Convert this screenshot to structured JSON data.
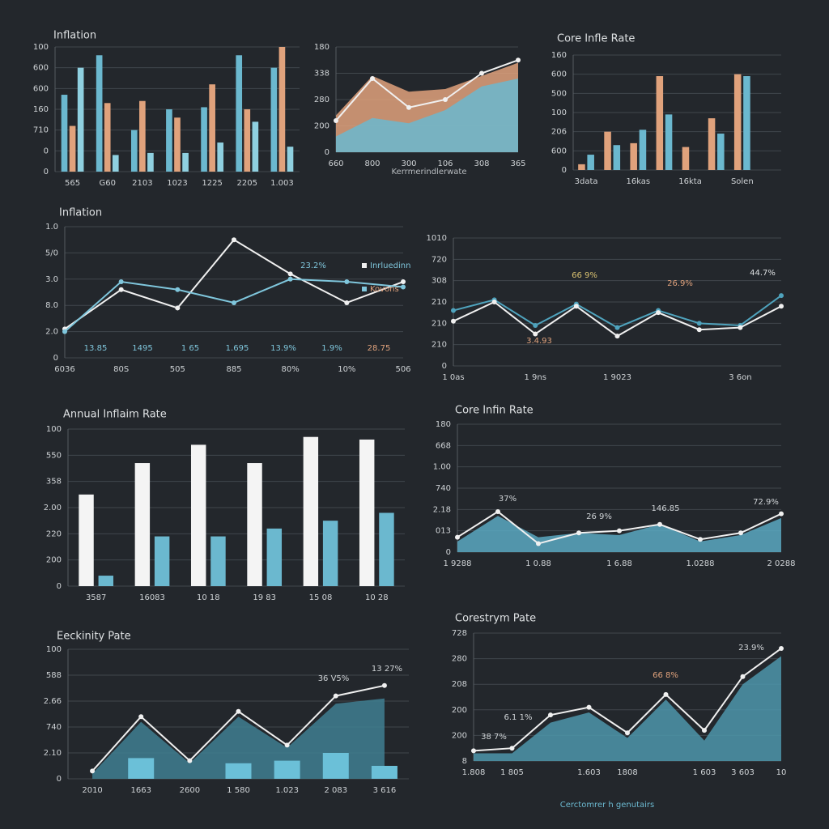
{
  "chart_data": [
    {
      "type": "bar",
      "title": "Inflation",
      "grid": true,
      "categories": [
        "565",
        "G60",
        "2103",
        "1023",
        "1225",
        "2205",
        "1.003"
      ],
      "series": [
        {
          "color": "#6bb8cf",
          "values": [
            3.7,
            5.6,
            2.0,
            3.0,
            3.1,
            5.6,
            5.0
          ]
        },
        {
          "color": "#e0a27c",
          "values": [
            2.2,
            3.3,
            3.4,
            2.6,
            4.2,
            3.0,
            6.0
          ]
        },
        {
          "color": "#8fd0e0",
          "values": [
            5.0,
            0.8,
            0.9,
            0.9,
            1.4,
            2.4,
            1.2
          ]
        }
      ],
      "ylim": [
        0,
        6
      ],
      "yticks": [
        0,
        {
          "value": 1,
          "label": "0"
        },
        {
          "value": 2,
          "label": "710"
        },
        {
          "value": 3,
          "label": "160"
        },
        {
          "value": 4,
          "label": "600"
        },
        {
          "value": 5,
          "label": "600"
        },
        {
          "value": 6,
          "label": "100"
        }
      ]
    },
    {
      "type": "area",
      "xlabel": "Kerrmerindlerwate",
      "grid": true,
      "categories": [
        "660",
        "800",
        "300",
        "106",
        "308",
        "365"
      ],
      "series": [
        {
          "type": "area",
          "color": "#e0a27c",
          "values": [
            1.4,
            2.9,
            2.3,
            2.4,
            2.9,
            3.4
          ]
        },
        {
          "type": "area",
          "color": "#6bb8cf",
          "values": [
            0.6,
            1.3,
            1.1,
            1.6,
            2.5,
            2.8
          ]
        },
        {
          "type": "line",
          "color": "#f0f0f0",
          "values": [
            1.2,
            2.8,
            1.7,
            2.0,
            3.0,
            3.5
          ]
        }
      ],
      "ylim": [
        0,
        4
      ],
      "yticks": [
        0,
        {
          "value": 1,
          "label": "200"
        },
        {
          "value": 2,
          "label": "280"
        },
        {
          "value": 3,
          "label": "338"
        },
        {
          "value": 4,
          "label": "180"
        }
      ]
    },
    {
      "type": "bar",
      "title": "Core Infle Rate",
      "grid": true,
      "categories": [
        "3data",
        null,
        "16kas",
        null,
        "16kta",
        null,
        "Solen",
        null
      ],
      "series": [
        {
          "color": "#e0a27c",
          "values": [
            0.3,
            2.0,
            1.4,
            4.9,
            1.2,
            2.7,
            5.0,
            0
          ]
        },
        {
          "color": "#6bb8cf",
          "values": [
            0.8,
            1.3,
            2.1,
            2.9,
            0,
            1.9,
            4.9,
            0
          ]
        }
      ],
      "ylim": [
        0,
        6
      ],
      "yticks": [
        0,
        {
          "value": 1,
          "label": "600"
        },
        {
          "value": 2,
          "label": "206"
        },
        {
          "value": 3,
          "label": "100"
        },
        {
          "value": 4,
          "label": "500"
        },
        {
          "value": 5,
          "label": "600"
        },
        {
          "value": 6,
          "label": "160"
        }
      ]
    },
    {
      "type": "line",
      "title": "Inflation",
      "grid": true,
      "categories": [
        "6036",
        "80S",
        "505",
        "885",
        "80%",
        "10%",
        "506"
      ],
      "series": [
        {
          "name": "Inrluedinn",
          "color": "#f0f0f0",
          "values": [
            1.1,
            2.6,
            1.9,
            4.5,
            3.2,
            2.1,
            2.9
          ]
        },
        {
          "name": "Kovons",
          "color": "#7fc6dc",
          "values": [
            1.0,
            2.9,
            2.6,
            2.1,
            3.0,
            2.9,
            2.7
          ]
        }
      ],
      "annotations": [
        {
          "text": "23.2%",
          "color": "#7fc6dc"
        },
        {
          "text": "13.85",
          "color": "#7fc6dc"
        },
        {
          "text": "1495",
          "color": "#7fc6dc"
        },
        {
          "text": "1 65",
          "color": "#7fc6dc"
        },
        {
          "text": "1.695",
          "color": "#7fc6dc"
        },
        {
          "text": "13.9%",
          "color": "#7fc6dc"
        },
        {
          "text": "1.9%",
          "color": "#7fc6dc"
        },
        {
          "text": "28.75",
          "color": "#e0a27c"
        }
      ],
      "ylim": [
        0,
        5
      ],
      "yticks": [
        0,
        {
          "value": 1,
          "label": "2.0"
        },
        {
          "value": 2,
          "label": "8.0"
        },
        {
          "value": 3,
          "label": "3.0"
        },
        {
          "value": 4,
          "label": "5/0"
        },
        {
          "value": 5,
          "label": "1.0"
        }
      ]
    },
    {
      "type": "line",
      "grid": true,
      "categories": [
        "1 0as",
        null,
        "1 9ns",
        null,
        "1 9023",
        null,
        null,
        "3 6on",
        null
      ],
      "series": [
        {
          "color": "#4fa3bd",
          "values": [
            2.6,
            3.1,
            1.9,
            2.9,
            1.8,
            2.6,
            2.0,
            1.9,
            3.3
          ]
        },
        {
          "color": "#f0f0f0",
          "values": [
            2.1,
            3.0,
            1.5,
            2.8,
            1.4,
            2.5,
            1.7,
            1.8,
            2.8
          ]
        }
      ],
      "annotations": [
        {
          "text": "66 9%",
          "color": "#d8c070"
        },
        {
          "text": "26.9%",
          "color": "#e0a27c"
        },
        {
          "text": "44.7%",
          "color": "#dde0e2"
        },
        {
          "text": "3.4.93",
          "color": "#e0a27c"
        }
      ],
      "ylim": [
        0,
        6
      ],
      "yticks": [
        0,
        {
          "value": 1,
          "label": "210"
        },
        {
          "value": 2,
          "label": "210"
        },
        {
          "value": 3,
          "label": "210"
        },
        {
          "value": 4,
          "label": "308"
        },
        {
          "value": 5,
          "label": "720"
        },
        {
          "value": 6,
          "label": "1010"
        }
      ]
    },
    {
      "type": "bar",
      "title": "Annual Inflaim Rate",
      "grid": true,
      "categories": [
        "3587",
        "16083",
        "10 18",
        "19 83",
        "15 08",
        "10 28"
      ],
      "series": [
        {
          "color": "#f4f4f4",
          "values": [
            3.5,
            4.7,
            5.4,
            4.7,
            5.7,
            5.6
          ]
        },
        {
          "color": "#6bb8cf",
          "values": [
            0.4,
            1.9,
            1.9,
            2.2,
            2.5,
            2.8
          ]
        }
      ],
      "ylim": [
        0,
        6
      ],
      "yticks": [
        0,
        {
          "value": 1,
          "label": "200"
        },
        {
          "value": 2,
          "label": "220"
        },
        {
          "value": 3,
          "label": "2.00"
        },
        {
          "value": 4,
          "label": "358"
        },
        {
          "value": 5,
          "label": "550"
        },
        {
          "value": 6,
          "label": "100"
        }
      ]
    },
    {
      "type": "area",
      "title": "Core Infin Rate",
      "grid": true,
      "categories": [
        "1 9288",
        null,
        "1 0.88",
        null,
        "1 6.88",
        null,
        "1.0288",
        null,
        "2 0288"
      ],
      "series": [
        {
          "type": "area",
          "color": "#5aa9c2",
          "values": [
            0.5,
            1.7,
            0.7,
            0.9,
            0.8,
            1.3,
            0.5,
            0.8,
            1.6
          ]
        },
        {
          "type": "line",
          "color": "#f0f0f0",
          "values": [
            0.7,
            1.9,
            0.4,
            0.9,
            1.0,
            1.3,
            0.6,
            0.9,
            1.8
          ]
        }
      ],
      "annotations": [
        {
          "text": "37%",
          "color": "#cfd3d6"
        },
        {
          "text": "26 9%",
          "color": "#cfd3d6"
        },
        {
          "text": "146.85",
          "color": "#cfd3d6"
        },
        {
          "text": "72.9%",
          "color": "#cfd3d6"
        }
      ],
      "ylim": [
        0,
        6
      ],
      "yticks": [
        0,
        {
          "value": 1,
          "label": "013"
        },
        {
          "value": 2,
          "label": "2.18"
        },
        {
          "value": 3,
          "label": "740"
        },
        {
          "value": 4,
          "label": "1.00"
        },
        {
          "value": 5,
          "label": "668"
        },
        {
          "value": 6,
          "label": "180"
        }
      ]
    },
    {
      "type": "combo",
      "title": "Eeckinity Pate",
      "grid": true,
      "categories": [
        "2010",
        "1663",
        "2600",
        "1 580",
        "1.023",
        "2 083",
        "3 616"
      ],
      "series": [
        {
          "type": "area",
          "color": "#3f7f92",
          "values": [
            0.2,
            2.2,
            0.6,
            2.4,
            1.2,
            2.9,
            3.1
          ]
        },
        {
          "type": "bar",
          "color": "#6bc0d8",
          "values": [
            0,
            0.8,
            0,
            0.6,
            0.7,
            1.0,
            0.5
          ]
        },
        {
          "type": "line",
          "color": "#f0f0f0",
          "values": [
            0.3,
            2.4,
            0.7,
            2.6,
            1.3,
            3.2,
            3.6
          ]
        }
      ],
      "annotations": [
        {
          "text": "36 V5%",
          "color": "#cfd3d6"
        },
        {
          "text": "13 27%",
          "color": "#cfd3d6"
        }
      ],
      "ylim": [
        0,
        5
      ],
      "yticks": [
        0,
        {
          "value": 1,
          "label": "2.10"
        },
        {
          "value": 2,
          "label": "740"
        },
        {
          "value": 3,
          "label": "2.66"
        },
        {
          "value": 4,
          "label": "588"
        },
        {
          "value": 5,
          "label": "100"
        }
      ]
    },
    {
      "type": "area",
      "title": "Corestrym Pate",
      "xlabel": "Cerctomrer h genutairs",
      "grid": true,
      "categories": [
        "1.808",
        "1 805",
        null,
        "1.603",
        "1808",
        null,
        "1 603",
        "3 603",
        "10"
      ],
      "series": [
        {
          "type": "area",
          "color": "#4d96ab",
          "values": [
            0.3,
            0.3,
            1.5,
            1.9,
            0.9,
            2.4,
            0.8,
            3.0,
            4.1
          ]
        },
        {
          "type": "line",
          "color": "#f0f0f0",
          "values": [
            0.4,
            0.5,
            1.8,
            2.1,
            1.1,
            2.6,
            1.2,
            3.3,
            4.4
          ]
        }
      ],
      "annotations": [
        {
          "text": "23.9%",
          "color": "#cfd3d6"
        },
        {
          "text": "66 8%",
          "color": "#e0a27c"
        },
        {
          "text": "6.1 1%",
          "color": "#cfd3d6"
        },
        {
          "text": "38 7%",
          "color": "#cfd3d6"
        }
      ],
      "ylim": [
        0,
        5
      ],
      "yticks": [
        {
          "value": 0,
          "label": "8"
        },
        {
          "value": 1,
          "label": "200"
        },
        {
          "value": 2,
          "label": "200"
        },
        {
          "value": 3,
          "label": "208"
        },
        {
          "value": 4,
          "label": "280"
        },
        {
          "value": 5,
          "label": "728"
        }
      ]
    }
  ]
}
